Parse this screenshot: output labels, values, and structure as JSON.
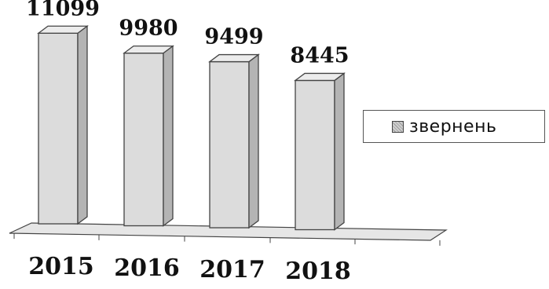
{
  "chart_data": {
    "type": "bar",
    "categories": [
      "2015",
      "2016",
      "2017",
      "2018"
    ],
    "series": [
      {
        "name": "звернень",
        "values": [
          11099,
          9980,
          9499,
          8445
        ]
      }
    ],
    "data_labels": [
      "11099",
      "9980",
      "9499",
      "8445"
    ],
    "ylim": [
      0,
      12000
    ],
    "grid": false,
    "legend_position": "right",
    "style": "3d-column",
    "colors": {
      "bar_front": "#dcdcdc",
      "bar_side": "#b4b4b4",
      "bar_top": "#ececec",
      "outline": "#444444"
    }
  }
}
